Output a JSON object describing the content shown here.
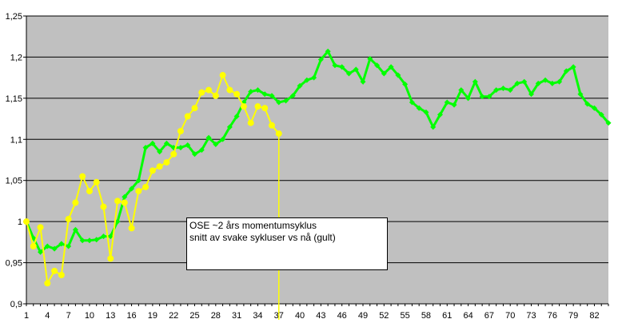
{
  "chart_data": {
    "type": "line",
    "title": "",
    "xlabel": "",
    "ylabel": "",
    "ylim": [
      0.9,
      1.25
    ],
    "yticks": [
      "0,9",
      "0,95",
      "1",
      "1,05",
      "1,1",
      "1,15",
      "1,2",
      "1,25"
    ],
    "xticks": [
      "1",
      "4",
      "7",
      "10",
      "13",
      "16",
      "19",
      "22",
      "25",
      "28",
      "31",
      "34",
      "37",
      "40",
      "43",
      "46",
      "49",
      "52",
      "55",
      "58",
      "61",
      "64",
      "67",
      "70",
      "73",
      "76",
      "79",
      "82"
    ],
    "grid": true,
    "background": "#c0c0c0",
    "series": [
      {
        "color": "#00ff00",
        "marker": "diamond",
        "x_start": 1,
        "values": [
          1.0,
          0.98,
          0.963,
          0.97,
          0.967,
          0.973,
          0.97,
          0.99,
          0.977,
          0.977,
          0.978,
          0.982,
          0.982,
          1.0,
          1.03,
          1.04,
          1.05,
          1.09,
          1.095,
          1.085,
          1.095,
          1.09,
          1.09,
          1.093,
          1.082,
          1.087,
          1.102,
          1.094,
          1.1,
          1.115,
          1.128,
          1.145,
          1.158,
          1.16,
          1.155,
          1.153,
          1.145,
          1.147,
          1.153,
          1.165,
          1.172,
          1.175,
          1.197,
          1.207,
          1.19,
          1.188,
          1.18,
          1.185,
          1.17,
          1.198,
          1.19,
          1.18,
          1.188,
          1.178,
          1.167,
          1.145,
          1.138,
          1.133,
          1.115,
          1.13,
          1.145,
          1.142,
          1.16,
          1.15,
          1.17,
          1.152,
          1.152,
          1.16,
          1.162,
          1.16,
          1.168,
          1.17,
          1.155,
          1.168,
          1.172,
          1.168,
          1.17,
          1.183,
          1.188,
          1.155,
          1.143,
          1.138,
          1.13,
          1.12
        ]
      },
      {
        "color": "#ffff00",
        "marker": "circle",
        "x_start": 1,
        "values": [
          1.0,
          0.97,
          0.993,
          0.925,
          0.94,
          0.935,
          1.003,
          1.023,
          1.055,
          1.037,
          1.048,
          1.018,
          0.955,
          1.025,
          1.023,
          0.992,
          1.037,
          1.042,
          1.062,
          1.067,
          1.072,
          1.082,
          1.11,
          1.128,
          1.138,
          1.157,
          1.16,
          1.153,
          1.178,
          1.16,
          1.155,
          1.14,
          1.12,
          1.14,
          1.138,
          1.117,
          1.107
        ]
      }
    ],
    "annotations": [
      {
        "lines": [
          "OSE ~2 års momentumsyklus",
          "snitt av svake sykluser vs nå (gult)"
        ]
      }
    ]
  }
}
